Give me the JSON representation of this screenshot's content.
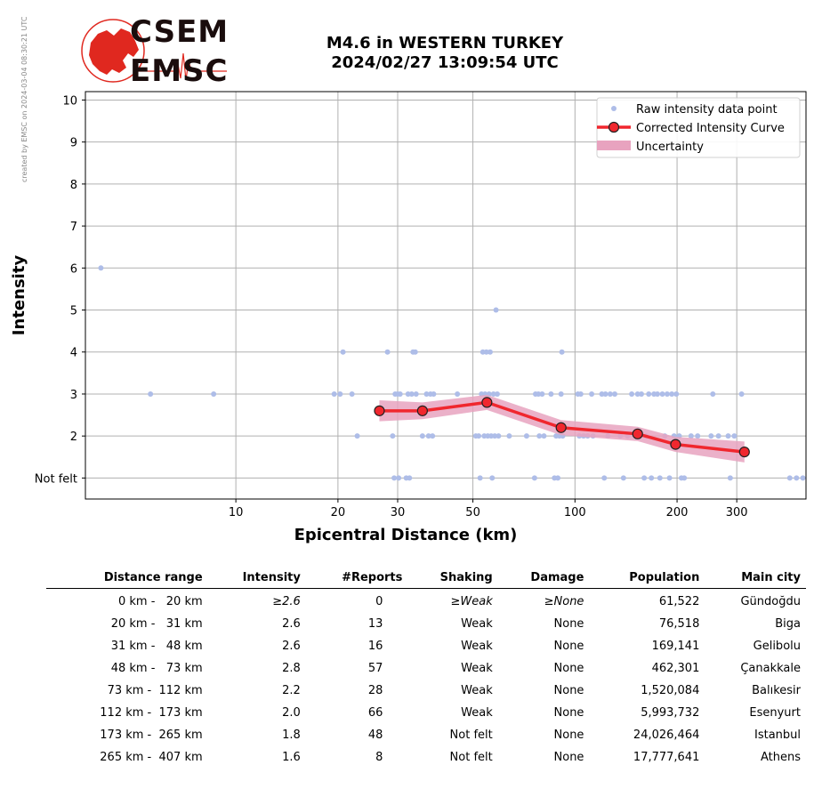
{
  "credit": "created by EMSC on 2024-03-04 08:30:21 UTC",
  "logo": {
    "top": "CSEM",
    "bottom": "EMSC"
  },
  "chart_data": {
    "type": "scatter",
    "title": "M4.6 in WESTERN TURKEY",
    "subtitle": "2024/02/27 13:09:54 UTC",
    "xlabel": "Epicentral Distance (km)",
    "ylabel": "Intensity",
    "x_scale": "log",
    "xlim": [
      3.6,
      480
    ],
    "ylim": [
      0.5,
      10.2
    ],
    "x_ticks": [
      10,
      20,
      30,
      50,
      100,
      200,
      300
    ],
    "x_tick_labels": [
      "10",
      "20",
      "30",
      "50",
      "100",
      "200",
      "300"
    ],
    "y_ticks": [
      1,
      2,
      3,
      4,
      5,
      6,
      7,
      8,
      9,
      10
    ],
    "y_tick_labels": [
      "Not felt",
      "2",
      "3",
      "4",
      "5",
      "6",
      "7",
      "8",
      "9",
      "10"
    ],
    "grid": true,
    "legend_position": "top-right",
    "legend": [
      "Raw intensity data point",
      "Corrected Intensity Curve",
      "Uncertainty"
    ],
    "colors": {
      "raw": "#aebde8",
      "curve": "#f0272e",
      "marker_edge": "#222222",
      "uncertainty": "#e8a3bf"
    },
    "raw_points": [
      [
        4,
        6
      ],
      [
        5.6,
        3
      ],
      [
        8.6,
        3
      ],
      [
        19.5,
        3
      ],
      [
        20.3,
        3
      ],
      [
        20.7,
        4
      ],
      [
        22,
        3
      ],
      [
        22.8,
        2
      ],
      [
        28,
        4
      ],
      [
        29,
        2
      ],
      [
        29.3,
        1
      ],
      [
        29.5,
        3
      ],
      [
        30,
        3
      ],
      [
        30.2,
        1
      ],
      [
        30.5,
        3
      ],
      [
        31.8,
        1
      ],
      [
        32.2,
        3
      ],
      [
        32.5,
        1
      ],
      [
        33,
        3
      ],
      [
        33.3,
        4
      ],
      [
        33.8,
        4
      ],
      [
        34,
        3
      ],
      [
        35.5,
        2
      ],
      [
        36.5,
        3
      ],
      [
        37,
        2
      ],
      [
        37.5,
        3
      ],
      [
        38,
        2
      ],
      [
        38.3,
        3
      ],
      [
        45,
        3
      ],
      [
        51,
        2
      ],
      [
        52,
        2
      ],
      [
        52.5,
        1
      ],
      [
        53,
        3
      ],
      [
        53.5,
        4
      ],
      [
        54,
        2
      ],
      [
        54.3,
        3
      ],
      [
        54.8,
        4
      ],
      [
        55.3,
        2
      ],
      [
        55.8,
        3
      ],
      [
        56.2,
        4
      ],
      [
        56.6,
        2
      ],
      [
        57,
        1
      ],
      [
        57.5,
        3
      ],
      [
        58,
        2
      ],
      [
        58.5,
        5
      ],
      [
        59,
        3
      ],
      [
        59.5,
        2
      ],
      [
        64,
        2
      ],
      [
        72,
        2
      ],
      [
        76,
        1
      ],
      [
        76.5,
        3
      ],
      [
        78,
        3
      ],
      [
        78.5,
        2
      ],
      [
        80,
        3
      ],
      [
        81,
        2
      ],
      [
        85,
        3
      ],
      [
        87,
        1
      ],
      [
        88,
        2
      ],
      [
        89,
        1
      ],
      [
        90,
        2
      ],
      [
        91,
        3
      ],
      [
        91.5,
        4
      ],
      [
        92,
        2
      ],
      [
        102,
        3
      ],
      [
        103,
        2
      ],
      [
        104,
        3
      ],
      [
        106,
        2
      ],
      [
        109,
        2
      ],
      [
        112,
        3
      ],
      [
        113,
        2
      ],
      [
        120,
        3
      ],
      [
        122,
        1
      ],
      [
        123,
        3
      ],
      [
        125,
        2
      ],
      [
        127,
        3
      ],
      [
        131,
        3
      ],
      [
        136,
        2
      ],
      [
        139,
        1
      ],
      [
        143,
        2
      ],
      [
        147,
        3
      ],
      [
        151,
        2
      ],
      [
        153,
        3
      ],
      [
        157,
        3
      ],
      [
        160,
        1
      ],
      [
        162,
        2
      ],
      [
        165,
        3
      ],
      [
        168,
        1
      ],
      [
        171,
        3
      ],
      [
        175,
        3
      ],
      [
        178,
        1
      ],
      [
        181,
        3
      ],
      [
        184,
        2
      ],
      [
        187,
        3
      ],
      [
        190,
        1
      ],
      [
        193,
        3
      ],
      [
        196,
        2
      ],
      [
        199,
        3
      ],
      [
        203,
        2
      ],
      [
        206,
        1
      ],
      [
        210,
        1
      ],
      [
        220,
        2
      ],
      [
        230,
        2
      ],
      [
        252,
        2
      ],
      [
        255,
        3
      ],
      [
        265,
        2
      ],
      [
        283,
        2
      ],
      [
        287,
        1
      ],
      [
        295,
        2
      ],
      [
        310,
        3
      ],
      [
        430,
        1
      ],
      [
        450,
        1
      ],
      [
        470,
        1
      ]
    ],
    "curve": [
      [
        26.5,
        2.6
      ],
      [
        35.5,
        2.6
      ],
      [
        55,
        2.8
      ],
      [
        91,
        2.2
      ],
      [
        153,
        2.05
      ],
      [
        198,
        1.8
      ],
      [
        316,
        1.62
      ]
    ],
    "uncertainty": [
      [
        26.5,
        2.35,
        2.85
      ],
      [
        35.5,
        2.4,
        2.8
      ],
      [
        55,
        2.62,
        2.98
      ],
      [
        91,
        2.02,
        2.38
      ],
      [
        153,
        1.88,
        2.22
      ],
      [
        198,
        1.62,
        1.98
      ],
      [
        316,
        1.37,
        1.87
      ]
    ]
  },
  "table": {
    "headers": [
      "Distance range",
      "Intensity",
      "#Reports",
      "Shaking",
      "Damage",
      "Population",
      "Main city"
    ],
    "rows": [
      {
        "range": "0 km -   20 km",
        "intensity": "≥2.6",
        "reports": "0",
        "shaking": "≥Weak",
        "damage": "≥None",
        "population": "61,522",
        "city": "Gündoğdu"
      },
      {
        "range": "20 km -   31 km",
        "intensity": "2.6",
        "reports": "13",
        "shaking": "Weak",
        "damage": "None",
        "population": "76,518",
        "city": "Biga"
      },
      {
        "range": "31 km -   48 km",
        "intensity": "2.6",
        "reports": "16",
        "shaking": "Weak",
        "damage": "None",
        "population": "169,141",
        "city": "Gelibolu"
      },
      {
        "range": "48 km -   73 km",
        "intensity": "2.8",
        "reports": "57",
        "shaking": "Weak",
        "damage": "None",
        "population": "462,301",
        "city": "Çanakkale"
      },
      {
        "range": "73 km -  112 km",
        "intensity": "2.2",
        "reports": "28",
        "shaking": "Weak",
        "damage": "None",
        "population": "1,520,084",
        "city": "Balıkesir"
      },
      {
        "range": "112 km -  173 km",
        "intensity": "2.0",
        "reports": "66",
        "shaking": "Weak",
        "damage": "None",
        "population": "5,993,732",
        "city": "Esenyurt"
      },
      {
        "range": "173 km -  265 km",
        "intensity": "1.8",
        "reports": "48",
        "shaking": "Not felt",
        "damage": "None",
        "population": "24,026,464",
        "city": "Istanbul"
      },
      {
        "range": "265 km -  407 km",
        "intensity": "1.6",
        "reports": "8",
        "shaking": "Not felt",
        "damage": "None",
        "population": "17,777,641",
        "city": "Athens"
      }
    ]
  }
}
